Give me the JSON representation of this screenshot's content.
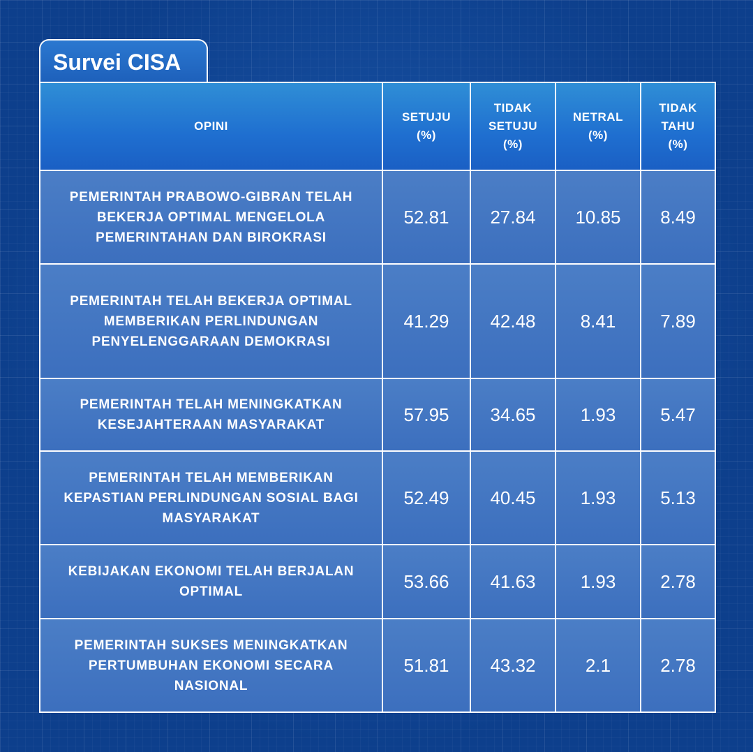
{
  "title": "Survei CISA",
  "chart_data": {
    "type": "table",
    "title": "Survei CISA",
    "columns": [
      {
        "key": "opini",
        "lines": [
          "OPINI"
        ]
      },
      {
        "key": "setuju",
        "lines": [
          "SETUJU",
          "(%)"
        ]
      },
      {
        "key": "tidak_setuju",
        "lines": [
          "TIDAK",
          "SETUJU",
          "(%)"
        ]
      },
      {
        "key": "netral",
        "lines": [
          "NETRAL",
          "(%)"
        ]
      },
      {
        "key": "tidak_tahu",
        "lines": [
          "TIDAK",
          "TAHU",
          "(%)"
        ]
      }
    ],
    "rows": [
      {
        "opini": "PEMERINTAH PRABOWO-GIBRAN TELAH BEKERJA OPTIMAL MENGELOLA PEMERINTAHAN DAN BIROKRASI",
        "values": [
          "52.81",
          "27.84",
          "10.85",
          "8.49"
        ]
      },
      {
        "opini": "PEMERINTAH TELAH BEKERJA OPTIMAL MEMBERIKAN PERLINDUNGAN PENYELENGGARAAN DEMOKRASI",
        "values": [
          "41.29",
          "42.48",
          "8.41",
          "7.89"
        ]
      },
      {
        "opini": "PEMERINTAH TELAH MENINGKATKAN KESEJAHTERAAN MASYARAKAT",
        "values": [
          "57.95",
          "34.65",
          "1.93",
          "5.47"
        ]
      },
      {
        "opini": "PEMERINTAH TELAH MEMBERIKAN KEPASTIAN PERLINDUNGAN SOSIAL BAGI MASYARAKAT",
        "values": [
          "52.49",
          "40.45",
          "1.93",
          "5.13"
        ]
      },
      {
        "opini": "KEBIJAKAN EKONOMI TELAH BERJALAN OPTIMAL",
        "values": [
          "53.66",
          "41.63",
          "1.93",
          "2.78"
        ]
      },
      {
        "opini": "PEMERINTAH SUKSES MENINGKATKAN PERTUMBUHAN EKONOMI SECARA NASIONAL",
        "values": [
          "51.81",
          "43.32",
          "2.1",
          "2.78"
        ]
      }
    ]
  }
}
